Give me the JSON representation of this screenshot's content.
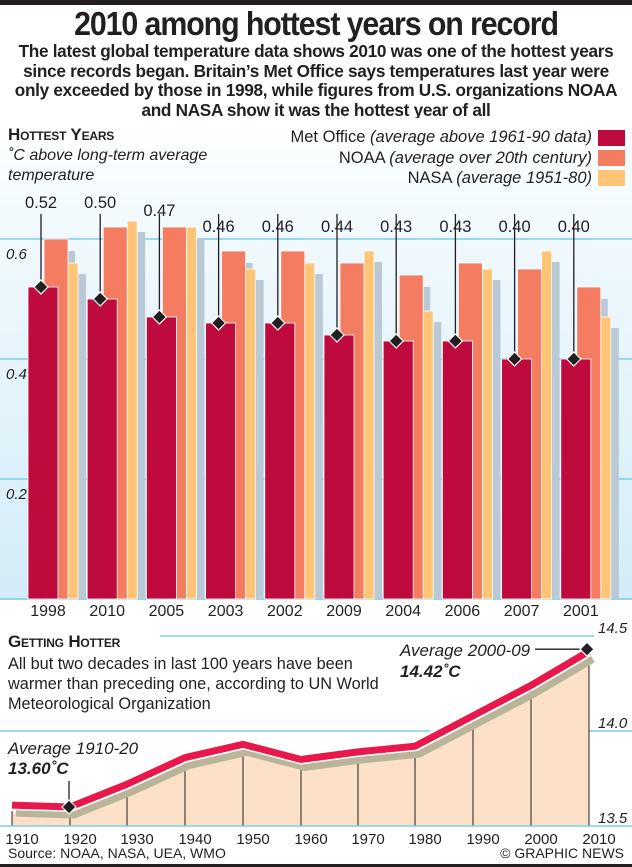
{
  "header": {
    "title": "2010 among hottest years on record",
    "subtitle": "The latest global temperature data shows 2010 was one of the hottest years since records began. Britain’s Met Office says temperatures last year were only exceeded by those in 1998, while figures from U.S. organizations NOAA and NASA show it was the hottest year of all"
  },
  "colors": {
    "met_office": "#BE0A3C",
    "noaa": "#F47C60",
    "nasa": "#FFC476",
    "shadow": "#B9C9D5",
    "gridline": "#7FCDE8",
    "line_red": "#E8184A",
    "line_shadow": "#B8B59A",
    "area_fill": "#FCE0C8"
  },
  "chart_data": [
    {
      "type": "bar",
      "title": "Hottest Years",
      "subtitle": "˚C above long-term average temperature",
      "categories": [
        "1998",
        "2010",
        "2005",
        "2003",
        "2002",
        "2009",
        "2004",
        "2006",
        "2007",
        "2001"
      ],
      "series": [
        {
          "name": "Met Office",
          "note": "(average above 1961-90 data)",
          "values": [
            0.52,
            0.5,
            0.47,
            0.46,
            0.46,
            0.44,
            0.43,
            0.43,
            0.4,
            0.4
          ]
        },
        {
          "name": "NOAA",
          "note": "(average over 20th century)",
          "values": [
            0.6,
            0.62,
            0.62,
            0.58,
            0.58,
            0.56,
            0.54,
            0.56,
            0.55,
            0.52
          ]
        },
        {
          "name": "NASA",
          "note": "(average 1951-80)",
          "values": [
            0.56,
            0.63,
            0.62,
            0.55,
            0.56,
            0.58,
            0.48,
            0.55,
            0.58,
            0.47
          ]
        }
      ],
      "data_labels": [
        "0.52",
        "0.50",
        "0.47",
        "0.46",
        "0.46",
        "0.44",
        "0.43",
        "0.43",
        "0.40",
        "0.40"
      ],
      "yticks": [
        "0.2",
        "0.4",
        "0.6"
      ],
      "ytick_values": [
        0.2,
        0.4,
        0.6
      ],
      "ylim": [
        0,
        0.67
      ],
      "grid": true,
      "legend": "top-right"
    },
    {
      "type": "area",
      "title": "Getting Hotter",
      "description": "All but two decades in last 100 years have been warmer than preceding one, according to UN World Meteorological Organization",
      "x": [
        "1910",
        "1920",
        "1930",
        "1940",
        "1950",
        "1960",
        "1970",
        "1980",
        "1990",
        "2000",
        "2010"
      ],
      "values": [
        13.61,
        13.6,
        13.72,
        13.86,
        13.93,
        13.85,
        13.89,
        13.92,
        14.08,
        14.24,
        14.42
      ],
      "yticks": [
        "13.5",
        "14.0",
        "14.5"
      ],
      "ytick_values": [
        13.5,
        14.0,
        14.5
      ],
      "ylim": [
        13.5,
        14.5
      ],
      "annotations": [
        {
          "label": "Average 1910-20",
          "value": "13.60˚C"
        },
        {
          "label": "Average 2000-09",
          "value": "14.42˚C"
        }
      ],
      "grid": true
    }
  ],
  "footer": {
    "source": "Source: NOAA, NASA, UEA, WMO",
    "credit": "© GRAPHIC NEWS"
  }
}
